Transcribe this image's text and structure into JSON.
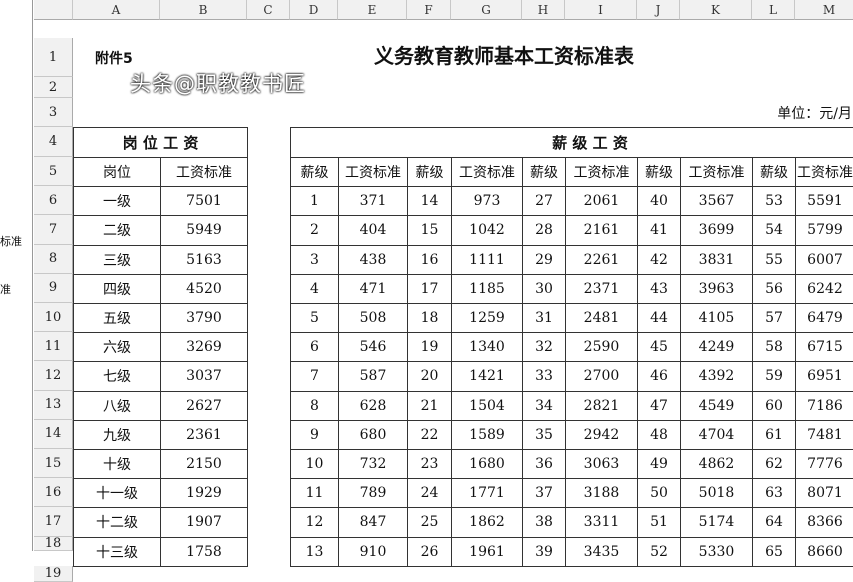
{
  "left_fragments": [
    "标准",
    "准"
  ],
  "columns": [
    "A",
    "B",
    "C",
    "D",
    "E",
    "F",
    "G",
    "H",
    "I",
    "J",
    "K",
    "L",
    "M"
  ],
  "rows": [
    "1",
    "2",
    "3",
    "4",
    "5",
    "6",
    "7",
    "8",
    "9",
    "10",
    "11",
    "12",
    "13",
    "14",
    "15",
    "16",
    "17",
    "18",
    "19"
  ],
  "attachment": "附件5",
  "title": "义务教育教师基本工资标准表",
  "unit": "单位：元/月",
  "post_section": {
    "title": "岗 位 工 资",
    "headers": [
      "岗位",
      "工资标准"
    ],
    "rows": [
      [
        "一级",
        "7501"
      ],
      [
        "二级",
        "5949"
      ],
      [
        "三级",
        "5163"
      ],
      [
        "四级",
        "4520"
      ],
      [
        "五级",
        "3790"
      ],
      [
        "六级",
        "3269"
      ],
      [
        "七级",
        "3037"
      ],
      [
        "八级",
        "2627"
      ],
      [
        "九级",
        "2361"
      ],
      [
        "十级",
        "2150"
      ],
      [
        "十一级",
        "1929"
      ],
      [
        "十二级",
        "1907"
      ],
      [
        "十三级",
        "1758"
      ]
    ]
  },
  "grade_section": {
    "title": "薪 级 工 资",
    "headers": [
      "薪级",
      "工资标准",
      "薪级",
      "工资标准",
      "薪级",
      "工资标准",
      "薪级",
      "工资标准",
      "薪级",
      "工资标准"
    ],
    "rows": [
      [
        "1",
        "371",
        "14",
        "973",
        "27",
        "2061",
        "40",
        "3567",
        "53",
        "5591"
      ],
      [
        "2",
        "404",
        "15",
        "1042",
        "28",
        "2161",
        "41",
        "3699",
        "54",
        "5799"
      ],
      [
        "3",
        "438",
        "16",
        "1111",
        "29",
        "2261",
        "42",
        "3831",
        "55",
        "6007"
      ],
      [
        "4",
        "471",
        "17",
        "1185",
        "30",
        "2371",
        "43",
        "3963",
        "56",
        "6242"
      ],
      [
        "5",
        "508",
        "18",
        "1259",
        "31",
        "2481",
        "44",
        "4105",
        "57",
        "6479"
      ],
      [
        "6",
        "546",
        "19",
        "1340",
        "32",
        "2590",
        "45",
        "4249",
        "58",
        "6715"
      ],
      [
        "7",
        "587",
        "20",
        "1421",
        "33",
        "2700",
        "46",
        "4392",
        "59",
        "6951"
      ],
      [
        "8",
        "628",
        "21",
        "1504",
        "34",
        "2821",
        "47",
        "4549",
        "60",
        "7186"
      ],
      [
        "9",
        "680",
        "22",
        "1589",
        "35",
        "2942",
        "48",
        "4704",
        "61",
        "7481"
      ],
      [
        "10",
        "732",
        "23",
        "1680",
        "36",
        "3063",
        "49",
        "4862",
        "62",
        "7776"
      ],
      [
        "11",
        "789",
        "24",
        "1771",
        "37",
        "3188",
        "50",
        "5018",
        "63",
        "8071"
      ],
      [
        "12",
        "847",
        "25",
        "1862",
        "38",
        "3311",
        "51",
        "5174",
        "64",
        "8366"
      ],
      [
        "13",
        "910",
        "26",
        "1961",
        "39",
        "3435",
        "52",
        "5330",
        "65",
        "8660"
      ]
    ]
  },
  "watermark": "头条@职教教书匠"
}
